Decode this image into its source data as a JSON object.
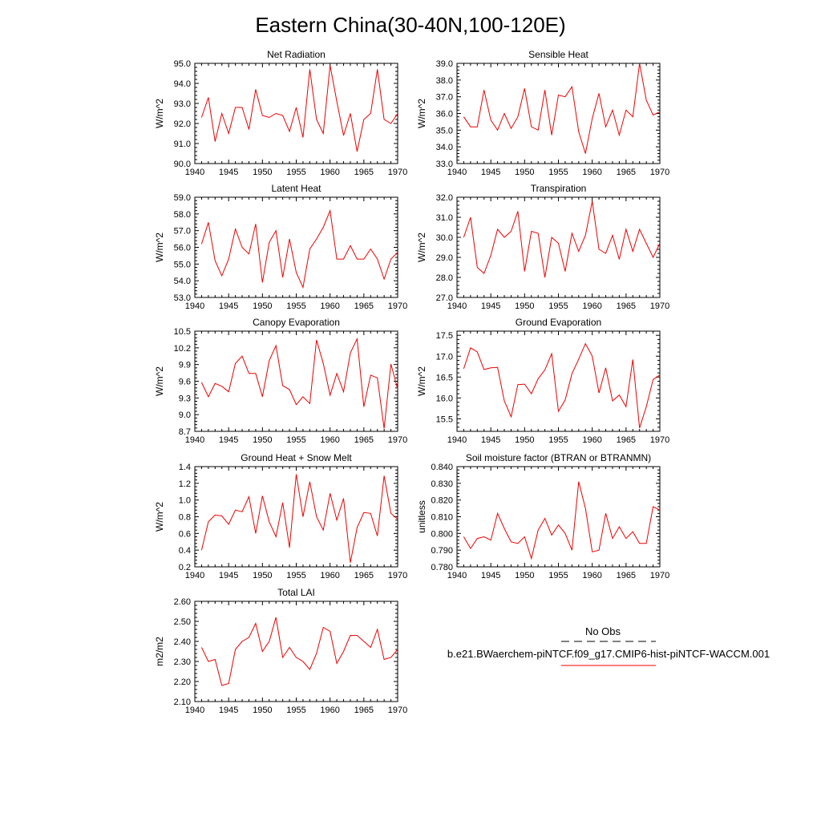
{
  "title": "Eastern China(30-40N,100-120E)",
  "legend": {
    "entries": [
      {
        "name": "No Obs",
        "color": "#000000",
        "dash": true
      },
      {
        "name": "b.e21.BWaerchem-piNTCF.f09_g17.CMIP6-hist-piNTCF-WACCM.001",
        "color": "#ee0000",
        "dash": false
      }
    ]
  },
  "chart_data": [
    {
      "type": "line",
      "title": "Net Radiation",
      "ylabel": "W/m^2",
      "xlim": [
        1940,
        1970
      ],
      "ylim": [
        90.0,
        95.0
      ],
      "xticks": [
        "1940",
        "1945",
        "1950",
        "1955",
        "1960",
        "1965",
        "1970"
      ],
      "yticks": [
        "90.0",
        "91.0",
        "92.0",
        "93.0",
        "94.0",
        "95.0"
      ],
      "x": [
        1941,
        1942,
        1943,
        1944,
        1945,
        1946,
        1947,
        1948,
        1949,
        1950,
        1951,
        1952,
        1953,
        1954,
        1955,
        1956,
        1957,
        1958,
        1959,
        1960,
        1961,
        1962,
        1963,
        1964,
        1965,
        1966,
        1967,
        1968,
        1969,
        1970
      ],
      "y": [
        92.3,
        93.3,
        91.1,
        92.5,
        91.5,
        92.8,
        92.8,
        91.7,
        93.7,
        92.4,
        92.3,
        92.5,
        92.4,
        91.6,
        92.8,
        91.3,
        94.7,
        92.2,
        91.5,
        94.9,
        93.1,
        91.4,
        92.5,
        90.6,
        92.2,
        92.5,
        94.7,
        92.2,
        92.0,
        92.5
      ]
    },
    {
      "type": "line",
      "title": "Sensible Heat",
      "ylabel": "W/m^2",
      "xlim": [
        1940,
        1970
      ],
      "ylim": [
        33.0,
        39.0
      ],
      "xticks": [
        "1940",
        "1945",
        "1950",
        "1955",
        "1960",
        "1965",
        "1970"
      ],
      "yticks": [
        "33.0",
        "34.0",
        "35.0",
        "36.0",
        "37.0",
        "38.0",
        "39.0"
      ],
      "x": [
        1941,
        1942,
        1943,
        1944,
        1945,
        1946,
        1947,
        1948,
        1949,
        1950,
        1951,
        1952,
        1953,
        1954,
        1955,
        1956,
        1957,
        1958,
        1959,
        1960,
        1961,
        1962,
        1963,
        1964,
        1965,
        1966,
        1967,
        1968,
        1969,
        1970
      ],
      "y": [
        35.8,
        35.2,
        35.2,
        37.4,
        35.6,
        35.0,
        36.0,
        35.1,
        35.8,
        37.5,
        35.2,
        35.0,
        37.4,
        34.7,
        37.1,
        37.0,
        37.6,
        34.9,
        33.6,
        35.7,
        37.2,
        35.2,
        36.2,
        34.7,
        36.2,
        35.8,
        39.0,
        36.8,
        35.9,
        36.1
      ]
    },
    {
      "type": "line",
      "title": "Latent Heat",
      "ylabel": "W/m^2",
      "xlim": [
        1940,
        1970
      ],
      "ylim": [
        53.0,
        59.0
      ],
      "xticks": [
        "1940",
        "1945",
        "1950",
        "1955",
        "1960",
        "1965",
        "1970"
      ],
      "yticks": [
        "53.0",
        "54.0",
        "55.0",
        "56.0",
        "57.0",
        "58.0",
        "59.0"
      ],
      "x": [
        1941,
        1942,
        1943,
        1944,
        1945,
        1946,
        1947,
        1948,
        1949,
        1950,
        1951,
        1952,
        1953,
        1954,
        1955,
        1956,
        1957,
        1958,
        1959,
        1960,
        1961,
        1962,
        1963,
        1964,
        1965,
        1966,
        1967,
        1968,
        1969,
        1970
      ],
      "y": [
        56.2,
        57.5,
        55.2,
        54.3,
        55.3,
        57.1,
        56.0,
        55.6,
        57.4,
        53.9,
        56.3,
        57.0,
        54.2,
        56.5,
        54.5,
        53.6,
        55.9,
        56.5,
        57.2,
        58.2,
        55.3,
        55.3,
        56.1,
        55.3,
        55.3,
        55.9,
        55.3,
        54.1,
        55.3,
        55.7
      ]
    },
    {
      "type": "line",
      "title": "Transpiration",
      "ylabel": "W/m^2",
      "xlim": [
        1940,
        1970
      ],
      "ylim": [
        27.0,
        32.0
      ],
      "xticks": [
        "1940",
        "1945",
        "1950",
        "1955",
        "1960",
        "1965",
        "1970"
      ],
      "yticks": [
        "27.0",
        "28.0",
        "29.0",
        "30.0",
        "31.0",
        "32.0"
      ],
      "x": [
        1941,
        1942,
        1943,
        1944,
        1945,
        1946,
        1947,
        1948,
        1949,
        1950,
        1951,
        1952,
        1953,
        1954,
        1955,
        1956,
        1957,
        1958,
        1959,
        1960,
        1961,
        1962,
        1963,
        1964,
        1965,
        1966,
        1967,
        1968,
        1969,
        1970
      ],
      "y": [
        30.0,
        31.0,
        28.5,
        28.2,
        29.1,
        30.4,
        30.0,
        30.3,
        31.3,
        28.3,
        30.3,
        30.2,
        28.0,
        30.0,
        29.7,
        28.3,
        30.2,
        29.3,
        30.1,
        31.8,
        29.4,
        29.2,
        30.1,
        28.9,
        30.4,
        29.3,
        30.4,
        29.7,
        29.0,
        29.7
      ]
    },
    {
      "type": "line",
      "title": "Canopy Evaporation",
      "ylabel": "W/m^2",
      "xlim": [
        1940,
        1970
      ],
      "ylim": [
        8.7,
        10.5
      ],
      "xticks": [
        "1940",
        "1945",
        "1950",
        "1955",
        "1960",
        "1965",
        "1970"
      ],
      "yticks": [
        "8.7",
        "9.0",
        "9.3",
        "9.6",
        "9.9",
        "10.2",
        "10.5"
      ],
      "x": [
        1941,
        1942,
        1943,
        1944,
        1945,
        1946,
        1947,
        1948,
        1949,
        1950,
        1951,
        1952,
        1953,
        1954,
        1955,
        1956,
        1957,
        1958,
        1959,
        1960,
        1961,
        1962,
        1963,
        1964,
        1965,
        1966,
        1967,
        1968,
        1969,
        1970
      ],
      "y": [
        9.58,
        9.32,
        9.56,
        9.51,
        9.41,
        9.92,
        10.05,
        9.74,
        9.74,
        9.32,
        9.97,
        10.24,
        9.52,
        9.45,
        9.18,
        9.32,
        9.2,
        10.34,
        9.92,
        9.35,
        9.74,
        9.41,
        10.11,
        10.36,
        9.14,
        9.71,
        9.66,
        8.75,
        9.91,
        9.46
      ]
    },
    {
      "type": "line",
      "title": "Ground Evaporation",
      "ylabel": "W/m^2",
      "xlim": [
        1940,
        1970
      ],
      "ylim": [
        15.2,
        17.6
      ],
      "xticks": [
        "1940",
        "1945",
        "1950",
        "1955",
        "1960",
        "1965",
        "1970"
      ],
      "yticks": [
        "15.5",
        "16.0",
        "16.5",
        "17.0",
        "17.5"
      ],
      "x": [
        1941,
        1942,
        1943,
        1944,
        1945,
        1946,
        1947,
        1948,
        1949,
        1950,
        1951,
        1952,
        1953,
        1954,
        1955,
        1956,
        1957,
        1958,
        1959,
        1960,
        1961,
        1962,
        1963,
        1964,
        1965,
        1966,
        1967,
        1968,
        1969,
        1970
      ],
      "y": [
        16.7,
        17.2,
        17.1,
        16.68,
        16.72,
        16.73,
        15.93,
        15.55,
        16.32,
        16.33,
        16.1,
        16.46,
        16.67,
        17.06,
        15.68,
        15.95,
        16.58,
        16.93,
        17.3,
        17.0,
        16.12,
        16.72,
        15.93,
        16.07,
        15.79,
        16.92,
        15.28,
        15.79,
        16.44,
        16.55
      ]
    },
    {
      "type": "line",
      "title": "Ground Heat + Snow Melt",
      "ylabel": "W/m^2",
      "xlim": [
        1940,
        1970
      ],
      "ylim": [
        0.2,
        1.4
      ],
      "xticks": [
        "1940",
        "1945",
        "1950",
        "1955",
        "1960",
        "1965",
        "1970"
      ],
      "yticks": [
        "0.2",
        "0.4",
        "0.6",
        "0.8",
        "1.0",
        "1.2",
        "1.4"
      ],
      "x": [
        1941,
        1942,
        1943,
        1944,
        1945,
        1946,
        1947,
        1948,
        1949,
        1950,
        1951,
        1952,
        1953,
        1954,
        1955,
        1956,
        1957,
        1958,
        1959,
        1960,
        1961,
        1962,
        1963,
        1964,
        1965,
        1966,
        1967,
        1968,
        1969,
        1970
      ],
      "y": [
        0.4,
        0.74,
        0.82,
        0.81,
        0.71,
        0.88,
        0.86,
        1.04,
        0.6,
        1.05,
        0.74,
        0.56,
        0.97,
        0.43,
        1.31,
        0.8,
        1.22,
        0.8,
        0.64,
        1.08,
        0.76,
        1.02,
        0.25,
        0.67,
        0.85,
        0.84,
        0.57,
        1.29,
        0.84,
        0.77
      ]
    },
    {
      "type": "line",
      "title": "Soil moisture factor (BTRAN or BTRANMN)",
      "ylabel": "unitless",
      "xlim": [
        1940,
        1970
      ],
      "ylim": [
        0.78,
        0.84
      ],
      "xticks": [
        "1940",
        "1945",
        "1950",
        "1955",
        "1960",
        "1965",
        "1970"
      ],
      "yticks": [
        "0.780",
        "0.790",
        "0.800",
        "0.810",
        "0.820",
        "0.830",
        "0.840"
      ],
      "x": [
        1941,
        1942,
        1943,
        1944,
        1945,
        1946,
        1947,
        1948,
        1949,
        1950,
        1951,
        1952,
        1953,
        1954,
        1955,
        1956,
        1957,
        1958,
        1959,
        1960,
        1961,
        1962,
        1963,
        1964,
        1965,
        1966,
        1967,
        1968,
        1969,
        1970
      ],
      "y": [
        0.798,
        0.791,
        0.797,
        0.798,
        0.796,
        0.812,
        0.803,
        0.795,
        0.794,
        0.798,
        0.785,
        0.802,
        0.809,
        0.799,
        0.805,
        0.8,
        0.79,
        0.831,
        0.815,
        0.789,
        0.79,
        0.812,
        0.797,
        0.804,
        0.797,
        0.801,
        0.794,
        0.794,
        0.816,
        0.814
      ]
    },
    {
      "type": "line",
      "title": "Total LAI",
      "ylabel": "m2/m2",
      "xlim": [
        1940,
        1970
      ],
      "ylim": [
        2.1,
        2.6
      ],
      "xticks": [
        "1940",
        "1945",
        "1950",
        "1955",
        "1960",
        "1965",
        "1970"
      ],
      "yticks": [
        "2.10",
        "2.20",
        "2.30",
        "2.40",
        "2.50",
        "2.60"
      ],
      "x": [
        1941,
        1942,
        1943,
        1944,
        1945,
        1946,
        1947,
        1948,
        1949,
        1950,
        1951,
        1952,
        1953,
        1954,
        1955,
        1956,
        1957,
        1958,
        1959,
        1960,
        1961,
        1962,
        1963,
        1964,
        1965,
        1966,
        1967,
        1968,
        1969,
        1970
      ],
      "y": [
        2.37,
        2.3,
        2.31,
        2.18,
        2.19,
        2.36,
        2.4,
        2.42,
        2.49,
        2.35,
        2.4,
        2.52,
        2.32,
        2.37,
        2.32,
        2.3,
        2.26,
        2.34,
        2.47,
        2.45,
        2.29,
        2.35,
        2.43,
        2.43,
        2.4,
        2.37,
        2.46,
        2.31,
        2.32,
        2.36
      ]
    }
  ]
}
